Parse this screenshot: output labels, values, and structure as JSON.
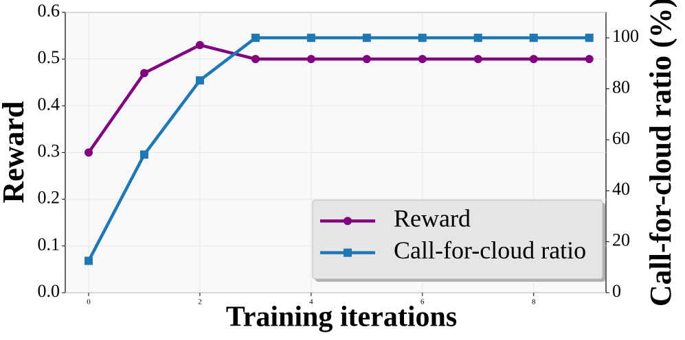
{
  "chart_data": {
    "type": "line",
    "x": [
      0,
      1,
      2,
      3,
      4,
      5,
      6,
      7,
      8,
      9
    ],
    "xlabel": "Training iterations",
    "ylabel": "Reward",
    "y2label": "Call-for-cloud ratio (%)",
    "xlim": [
      -0.42,
      9.3
    ],
    "xticks": [
      0,
      2,
      4,
      6,
      8
    ],
    "ylim": [
      0,
      0.6
    ],
    "yticks": [
      {
        "value": 0,
        "label": "0.0"
      },
      0.1,
      0.2,
      0.3,
      0.4,
      0.5,
      0.6
    ],
    "y2lim": [
      0,
      110
    ],
    "y2ticks": [
      0,
      20,
      40,
      60,
      80,
      100
    ],
    "grid": true,
    "legend": "lower right",
    "series": [
      {
        "name": "Reward",
        "color": "#800080",
        "marker": "circle",
        "values": [
          0.3,
          0.47,
          0.53,
          0.5,
          0.5,
          0.5,
          0.5,
          0.5,
          0.5,
          0.5
        ]
      },
      {
        "name": "Call-for-cloud ratio",
        "color": "#1f77b4",
        "marker": "square",
        "axis": "y2",
        "values": [
          12.5,
          54.2,
          83.3,
          100,
          100,
          100,
          100,
          100,
          100,
          100
        ]
      }
    ]
  }
}
